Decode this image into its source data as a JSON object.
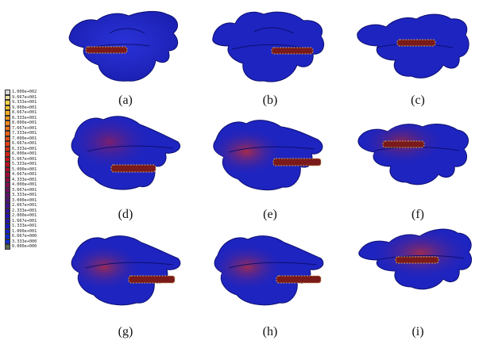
{
  "legend": {
    "values": [
      "1.000e+002",
      "9.667e+001",
      "9.333e+001",
      "9.000e+001",
      "8.667e+001",
      "8.333e+001",
      "8.000e+001",
      "7.667e+001",
      "7.333e+001",
      "7.000e+001",
      "6.667e+001",
      "6.333e+001",
      "6.000e+001",
      "5.667e+001",
      "5.333e+001",
      "5.000e+001",
      "4.667e+001",
      "4.333e+001",
      "4.000e+001",
      "3.667e+001",
      "3.333e+001",
      "3.000e+001",
      "2.667e+001",
      "2.333e+001",
      "2.000e+001",
      "1.667e+001",
      "1.333e+001",
      "1.000e+001",
      "6.667e+000",
      "3.333e+000",
      "0.000e+000"
    ],
    "colors": [
      "#d8d8d8",
      "#e9e2a0",
      "#f4d24a",
      "#f3c12f",
      "#f2ad24",
      "#f09a20",
      "#ee871c",
      "#ec7419",
      "#ea6216",
      "#e75013",
      "#e33f12",
      "#dc3012",
      "#d22414",
      "#c71a18",
      "#bb121f",
      "#ad0d29",
      "#9e0b35",
      "#8f0b43",
      "#800c52",
      "#700e61",
      "#600f70",
      "#51107f",
      "#42118e",
      "#34129b",
      "#2814a8",
      "#1f17b4",
      "#171cbd",
      "#1224c4",
      "#0d2ccc",
      "#0f2fd2",
      "#5a6a50"
    ]
  },
  "panels": [
    {
      "caption": "(a)",
      "shape": "a"
    },
    {
      "caption": "(b)",
      "shape": "b"
    },
    {
      "caption": "(c)",
      "shape": "c"
    },
    {
      "caption": "(d)",
      "shape": "d"
    },
    {
      "caption": "(e)",
      "shape": "e"
    },
    {
      "caption": "(f)",
      "shape": "f"
    },
    {
      "caption": "(g)",
      "shape": "g"
    },
    {
      "caption": "(h)",
      "shape": "h"
    },
    {
      "caption": "(i)",
      "shape": "i"
    }
  ]
}
